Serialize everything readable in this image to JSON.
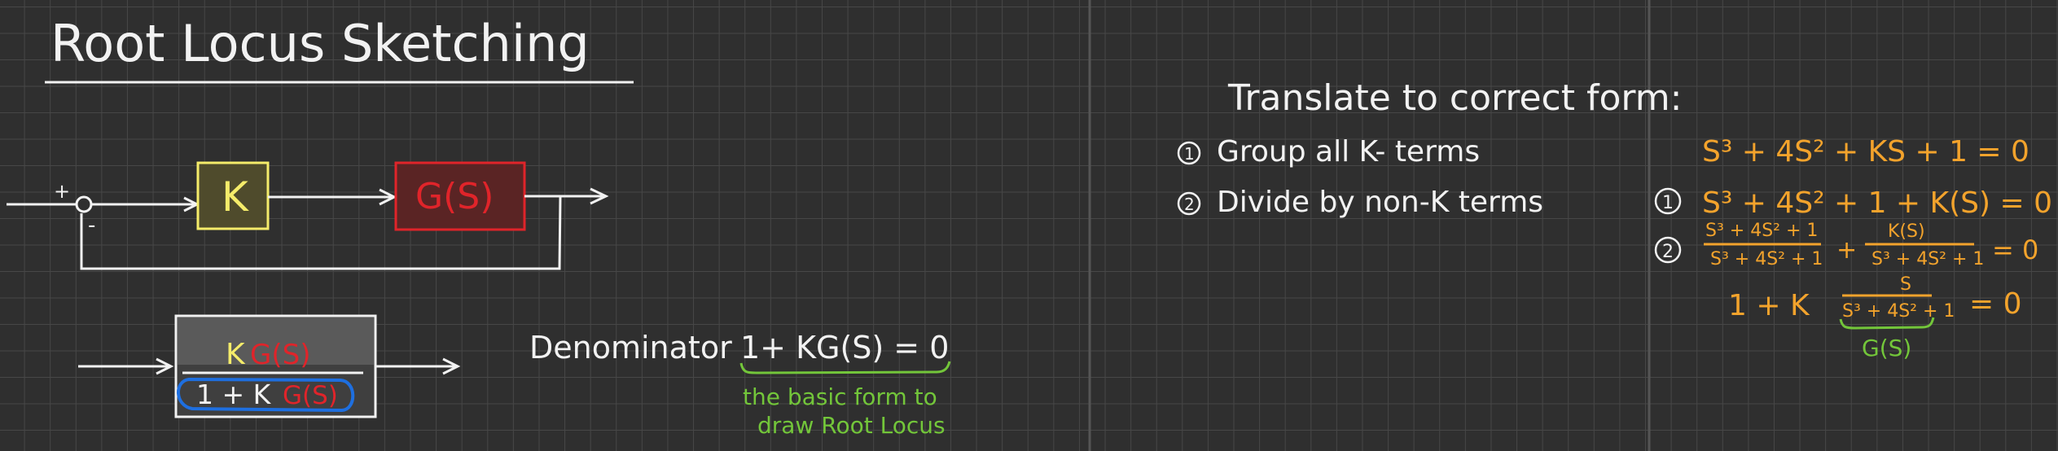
{
  "title": "Root Locus Sketching",
  "block_diagram": {
    "plus_sign": "+",
    "minus_sign": "-",
    "k_block": "K",
    "g_block": "G(S)"
  },
  "closed_loop": {
    "numerator_k": "K",
    "numerator_g": "G(S)",
    "denominator_prefix": "1 + K",
    "denominator_g": "G(S)"
  },
  "denominator_note": {
    "label": "Denominator",
    "equation": "1+ KG(S) = 0",
    "caption_line1": "the basic form to",
    "caption_line2": "draw Root Locus"
  },
  "translate": {
    "heading": "Translate to correct form:",
    "step1": "Group all K- terms",
    "step2": "Divide by non-K terms",
    "step1_marker": "1",
    "step2_marker": "2"
  },
  "math": {
    "original": "S³ + 4S² + KS + 1 = 0",
    "grouped": "S³ + 4S² + 1 + K(S) = 0",
    "frac1_num": "S³ + 4S² + 1",
    "frac1_den": "S³ + 4S² + 1",
    "plus": "+",
    "frac2_num": "K(S)",
    "frac2_den": "S³ + 4S² + 1",
    "equals_zero": "= 0",
    "final_prefix": "1 + K",
    "final_num": "S",
    "final_den": "S³ + 4S² + 1",
    "final_eq": "= 0",
    "g_label": "G(S)"
  },
  "colors": {
    "background": "#2f2f2f",
    "grid": "#474747",
    "ink": "#f2f2f2",
    "k_yellow": "#f5ec6a",
    "g_red": "#e0242a",
    "math_orange": "#f3a32c",
    "note_green": "#73c63a",
    "highlight_blue": "#1e6fe0"
  }
}
